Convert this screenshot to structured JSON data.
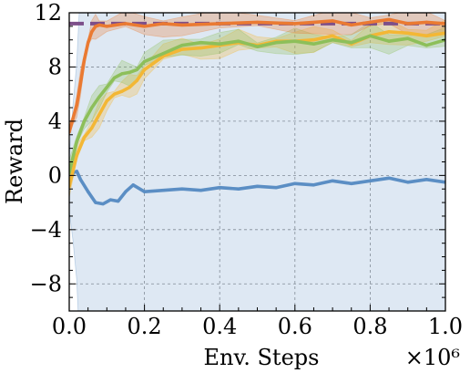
{
  "chart_data": {
    "type": "line",
    "xlabel": "Env. Steps",
    "ylabel": "Reward",
    "x_multiplier_label": "×10⁶",
    "xlim": [
      0.0,
      1.0
    ],
    "ylim": [
      -10,
      12
    ],
    "x_ticks": [
      "0.0",
      "0.2",
      "0.4",
      "0.6",
      "0.8",
      "1.0"
    ],
    "x_tick_values": [
      0.0,
      0.2,
      0.4,
      0.6,
      0.8,
      1.0
    ],
    "y_ticks": [
      "12",
      "8",
      "4",
      "0",
      "−4",
      "−8"
    ],
    "y_tick_values": [
      12,
      8,
      4,
      0,
      -4,
      -8
    ],
    "grid": true,
    "legend": "none",
    "reference_line": {
      "y": 11.2,
      "color": "#7d4f8a",
      "style": "dashed"
    },
    "series": [
      {
        "color": "#5b8ec4",
        "band": "wide",
        "x": [
          0.0,
          0.01,
          0.02,
          0.03,
          0.05,
          0.07,
          0.09,
          0.11,
          0.13,
          0.15,
          0.17,
          0.2,
          0.25,
          0.3,
          0.35,
          0.4,
          0.45,
          0.5,
          0.55,
          0.6,
          0.65,
          0.7,
          0.75,
          0.8,
          0.85,
          0.9,
          0.95,
          1.0
        ],
        "y": [
          -0.6,
          0.2,
          0.3,
          -0.3,
          -1.2,
          -2.0,
          -2.1,
          -1.8,
          -1.9,
          -1.2,
          -0.7,
          -1.2,
          -1.1,
          -1.0,
          -1.1,
          -0.9,
          -1.0,
          -0.8,
          -0.9,
          -0.6,
          -0.7,
          -0.4,
          -0.6,
          -0.4,
          -0.2,
          -0.5,
          -0.3,
          -0.5
        ]
      },
      {
        "color": "#f3b735",
        "band": "narrow",
        "x": [
          0.0,
          0.02,
          0.04,
          0.06,
          0.08,
          0.1,
          0.12,
          0.14,
          0.16,
          0.18,
          0.2,
          0.25,
          0.3,
          0.35,
          0.4,
          0.45,
          0.5,
          0.55,
          0.6,
          0.65,
          0.7,
          0.75,
          0.8,
          0.85,
          0.9,
          0.95,
          1.0
        ],
        "y": [
          -0.8,
          1.5,
          2.8,
          3.5,
          4.5,
          5.5,
          6.0,
          6.2,
          6.5,
          7.0,
          7.8,
          8.8,
          9.3,
          9.4,
          9.6,
          9.8,
          9.6,
          9.9,
          9.9,
          10.0,
          10.3,
          9.7,
          10.3,
          10.6,
          10.5,
          10.3,
          10.5
        ]
      },
      {
        "color": "#8dbf5a",
        "band": "narrow",
        "x": [
          0.0,
          0.02,
          0.04,
          0.06,
          0.08,
          0.1,
          0.12,
          0.14,
          0.16,
          0.18,
          0.2,
          0.25,
          0.3,
          0.35,
          0.4,
          0.45,
          0.5,
          0.55,
          0.6,
          0.65,
          0.7,
          0.75,
          0.8,
          0.85,
          0.9,
          0.95,
          1.0
        ],
        "y": [
          0.2,
          2.5,
          4.0,
          5.0,
          5.8,
          6.5,
          7.2,
          7.5,
          7.6,
          7.8,
          8.4,
          9.0,
          9.6,
          9.8,
          9.7,
          9.9,
          9.5,
          9.8,
          9.9,
          9.7,
          10.0,
          9.8,
          10.3,
          9.9,
          10.1,
          9.6,
          10.0
        ]
      },
      {
        "color": "#ea7a32",
        "band": "narrow",
        "x": [
          0.0,
          0.01,
          0.02,
          0.03,
          0.04,
          0.05,
          0.06,
          0.07,
          0.08,
          0.1,
          0.15,
          0.2,
          0.25,
          0.3,
          0.4,
          0.5,
          0.6,
          0.7,
          0.75,
          0.8,
          0.85,
          0.9,
          0.95,
          1.0
        ],
        "y": [
          3.2,
          4.2,
          5.2,
          6.8,
          8.5,
          9.8,
          10.6,
          11.0,
          11.1,
          11.0,
          11.2,
          11.0,
          11.2,
          11.1,
          11.2,
          11.3,
          11.2,
          11.4,
          11.1,
          11.3,
          11.5,
          11.2,
          11.3,
          11.2
        ]
      }
    ]
  }
}
